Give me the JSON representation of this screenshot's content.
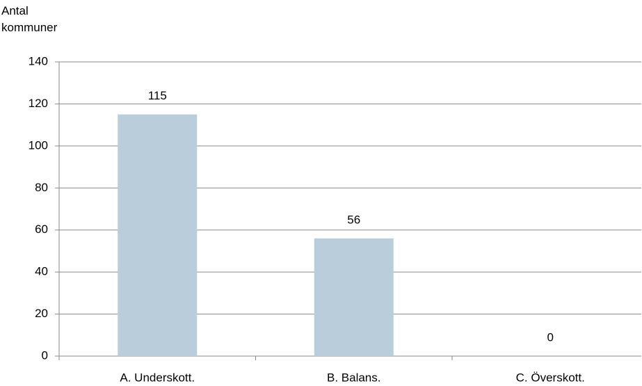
{
  "chart_data": {
    "type": "bar",
    "y_label": "Antal kommuner",
    "categories": [
      "A. Underskott.",
      "B. Balans.",
      "C. Överskott."
    ],
    "values": [
      115,
      56,
      0
    ],
    "color": "#b9cddb",
    "ylim": [
      0,
      140
    ],
    "yticks": [
      0,
      20,
      40,
      60,
      80,
      100,
      120,
      140
    ],
    "grid": true
  }
}
